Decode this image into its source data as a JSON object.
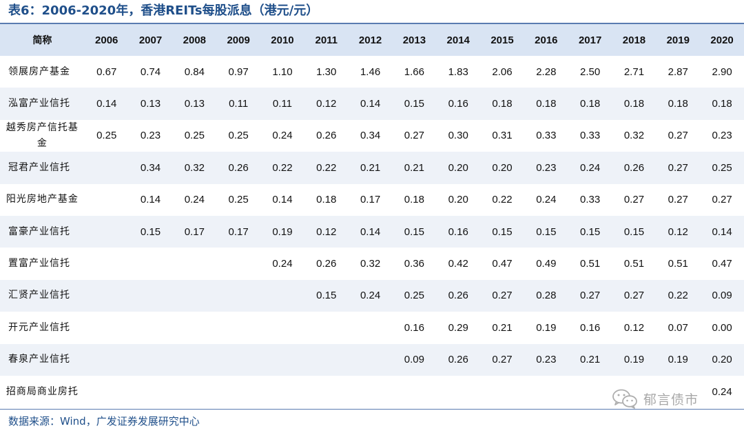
{
  "title": "表6：2006-2020年，香港REITs每股派息（港元/元）",
  "table": {
    "header": {
      "name": "简称",
      "years": [
        "2006",
        "2007",
        "2008",
        "2009",
        "2010",
        "2011",
        "2012",
        "2013",
        "2014",
        "2015",
        "2016",
        "2017",
        "2018",
        "2019",
        "2020"
      ]
    },
    "rows": [
      {
        "name": "领展房产基金",
        "values": [
          "0.67",
          "0.74",
          "0.84",
          "0.97",
          "1.10",
          "1.30",
          "1.46",
          "1.66",
          "1.83",
          "2.06",
          "2.28",
          "2.50",
          "2.71",
          "2.87",
          "2.90"
        ]
      },
      {
        "name": "泓富产业信托",
        "values": [
          "0.14",
          "0.13",
          "0.13",
          "0.11",
          "0.11",
          "0.12",
          "0.14",
          "0.15",
          "0.16",
          "0.18",
          "0.18",
          "0.18",
          "0.18",
          "0.18",
          "0.18"
        ]
      },
      {
        "name": "越秀房产信托基金",
        "values": [
          "0.25",
          "0.23",
          "0.25",
          "0.25",
          "0.24",
          "0.26",
          "0.34",
          "0.27",
          "0.30",
          "0.31",
          "0.33",
          "0.33",
          "0.32",
          "0.27",
          "0.23"
        ]
      },
      {
        "name": "冠君产业信托",
        "values": [
          "",
          "0.34",
          "0.32",
          "0.26",
          "0.22",
          "0.22",
          "0.21",
          "0.21",
          "0.20",
          "0.20",
          "0.23",
          "0.24",
          "0.26",
          "0.27",
          "0.25"
        ]
      },
      {
        "name": "阳光房地产基金",
        "values": [
          "",
          "0.14",
          "0.24",
          "0.25",
          "0.14",
          "0.18",
          "0.17",
          "0.18",
          "0.20",
          "0.22",
          "0.24",
          "0.33",
          "0.27",
          "0.27",
          "0.27"
        ]
      },
      {
        "name": "富豪产业信托",
        "values": [
          "",
          "0.15",
          "0.17",
          "0.17",
          "0.19",
          "0.12",
          "0.14",
          "0.15",
          "0.16",
          "0.15",
          "0.15",
          "0.15",
          "0.15",
          "0.12",
          "0.14"
        ]
      },
      {
        "name": "置富产业信托",
        "values": [
          "",
          "",
          "",
          "",
          "0.24",
          "0.26",
          "0.32",
          "0.36",
          "0.42",
          "0.47",
          "0.49",
          "0.51",
          "0.51",
          "0.51",
          "0.47"
        ]
      },
      {
        "name": "汇贤产业信托",
        "values": [
          "",
          "",
          "",
          "",
          "",
          "0.15",
          "0.24",
          "0.25",
          "0.26",
          "0.27",
          "0.28",
          "0.27",
          "0.27",
          "0.22",
          "0.09"
        ]
      },
      {
        "name": "开元产业信托",
        "values": [
          "",
          "",
          "",
          "",
          "",
          "",
          "",
          "0.16",
          "0.29",
          "0.21",
          "0.19",
          "0.16",
          "0.12",
          "0.07",
          "0.00"
        ]
      },
      {
        "name": "春泉产业信托",
        "values": [
          "",
          "",
          "",
          "",
          "",
          "",
          "",
          "0.09",
          "0.26",
          "0.27",
          "0.23",
          "0.21",
          "0.19",
          "0.19",
          "0.20"
        ]
      },
      {
        "name": "招商局商业房托",
        "values": [
          "",
          "",
          "",
          "",
          "",
          "",
          "",
          "",
          "",
          "",
          "",
          "",
          "",
          "",
          "0.24"
        ]
      }
    ]
  },
  "source": "数据来源：Wind，广发证券发展研究中心",
  "watermark": {
    "text": "郁言债市",
    "icon": "wechat-icon"
  }
}
